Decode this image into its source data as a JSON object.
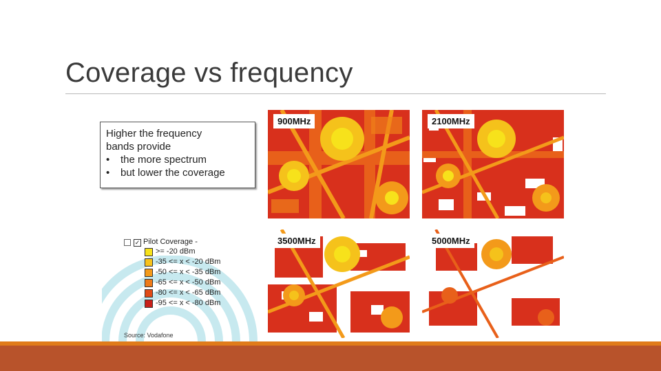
{
  "slide": {
    "title": "Coverage vs frequency"
  },
  "infobox": {
    "line1": "Higher the frequency",
    "line2": "bands provide",
    "bullet1": "the more spectrum",
    "bullet2": "but lower the coverage",
    "bullet_glyph": "•"
  },
  "maps": [
    {
      "label": "900MHz"
    },
    {
      "label": "2100MHz"
    },
    {
      "label": "3500MHz"
    },
    {
      "label": "5000MHz"
    }
  ],
  "legend": {
    "header": "Pilot Coverage -",
    "items": [
      {
        "label": ">= -20 dBm",
        "color": "#f7e21b"
      },
      {
        "label": "-35 <= x < -20 dBm",
        "color": "#f7c21b"
      },
      {
        "label": "-50 <= x < -35 dBm",
        "color": "#f39a1a"
      },
      {
        "label": "-65 <= x < -50 dBm",
        "color": "#ee7a18"
      },
      {
        "label": "-80 <= x < -65 dBm",
        "color": "#e04a16"
      },
      {
        "label": "-95 <= x < -80 dBm",
        "color": "#c8201a"
      }
    ],
    "source": "Source: Vodafone"
  },
  "colors": {
    "accent_thin": "#e07b1a",
    "accent_thick": "#b8532b",
    "watermark": "#c7e9ef"
  }
}
